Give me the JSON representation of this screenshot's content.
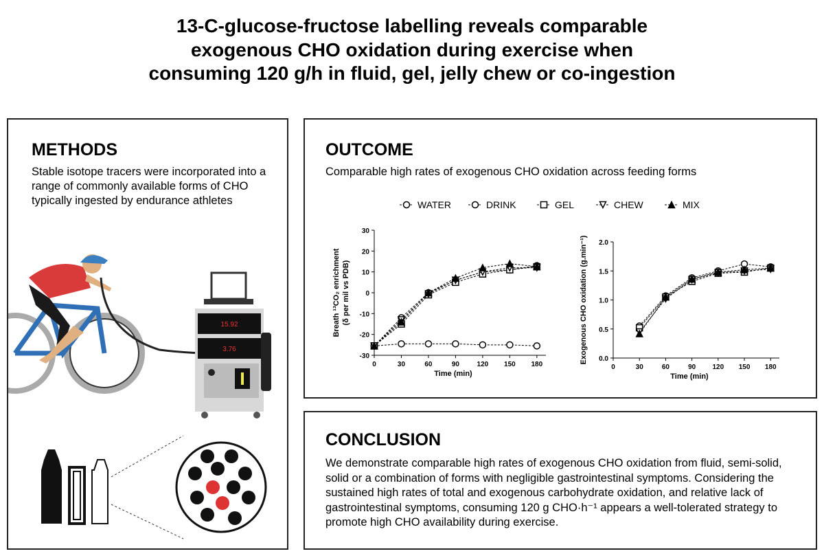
{
  "title": [
    "13-C-glucose-fructose labelling reveals comparable",
    "exogenous CHO oxidation during exercise when",
    "consuming 120 g/h in fluid, gel, jelly chew or co-ingestion"
  ],
  "methods": {
    "heading": "METHODS",
    "text": "Stable isotope tracers were incorporated into a range of commonly available forms of CHO typically ingested by endurance athletes",
    "device_readings": [
      "15.92",
      "3.76"
    ]
  },
  "outcome": {
    "heading": "OUTCOME",
    "text": "Comparable high rates of exogenous CHO oxidation across feeding forms"
  },
  "chart_data": [
    {
      "type": "line",
      "xlabel": "Time (min)",
      "ylabel": [
        "Breath ¹³CO₂ enrichment",
        "(δ per mil vs PDB)"
      ],
      "x": [
        0,
        30,
        60,
        90,
        120,
        150,
        180
      ],
      "xlim": [
        0,
        190
      ],
      "xticks": [
        0,
        30,
        60,
        90,
        120,
        150,
        180
      ],
      "ylim": [
        -30,
        30
      ],
      "yticks": [
        -30,
        -20,
        -10,
        0,
        10,
        20,
        30
      ],
      "series": [
        {
          "name": "WATER",
          "marker": "circle",
          "color": "#000000",
          "values": [
            -25.5,
            -24.5,
            -24.5,
            -24.5,
            -25,
            -25,
            -25.5
          ]
        },
        {
          "name": "DRINK",
          "marker": "circle",
          "color": "#000000",
          "values": [
            -25.5,
            -12,
            0,
            6,
            10,
            11,
            13
          ]
        },
        {
          "name": "GEL",
          "marker": "square",
          "color": "#000000",
          "values": [
            -25.5,
            -15,
            -1,
            5,
            9,
            11,
            12.5
          ]
        },
        {
          "name": "CHEW",
          "marker": "triangle-down",
          "color": "#000000",
          "values": [
            -25.5,
            -13,
            -0.5,
            6,
            10,
            12,
            12
          ]
        },
        {
          "name": "MIX",
          "marker": "triangle-filled",
          "color": "#000000",
          "values": [
            -25.5,
            -14,
            0,
            7,
            12,
            14,
            12.5
          ]
        }
      ]
    },
    {
      "type": "line",
      "xlabel": "Time (min)",
      "ylabel": [
        "Exogenous CHO oxidation (g.min⁻¹)"
      ],
      "x": [
        30,
        60,
        90,
        120,
        150,
        180
      ],
      "xlim": [
        0,
        190
      ],
      "xticks": [
        0,
        30,
        60,
        90,
        120,
        150,
        180
      ],
      "ylim": [
        0,
        2
      ],
      "yticks": [
        {
          "value": 0,
          "label": "0.0"
        },
        0.5,
        {
          "value": 1,
          "label": "1.0"
        },
        1.5,
        {
          "value": 2,
          "label": "2.0"
        }
      ],
      "series": [
        {
          "name": "DRINK",
          "marker": "circle",
          "color": "#000000",
          "values": [
            0.55,
            1.07,
            1.38,
            1.5,
            1.62,
            1.57
          ]
        },
        {
          "name": "GEL",
          "marker": "square",
          "color": "#000000",
          "values": [
            0.52,
            1.05,
            1.32,
            1.46,
            1.48,
            1.55
          ]
        },
        {
          "name": "CHEW",
          "marker": "triangle-down",
          "color": "#000000",
          "values": [
            0.45,
            1.02,
            1.35,
            1.47,
            1.5,
            1.53
          ]
        },
        {
          "name": "MIX",
          "marker": "triangle-filled",
          "color": "#000000",
          "values": [
            0.42,
            1.05,
            1.36,
            1.48,
            1.52,
            1.55
          ]
        }
      ]
    }
  ],
  "conclusion": {
    "heading": "CONCLUSION",
    "text": "We demonstrate comparable high rates of exogenous CHO oxidation from fluid, semi-solid, solid or a combination of forms with negligible gastrointestinal symptoms. Considering the sustained high rates of total and exogenous carbohydrate oxidation, and relative lack of gastrointestinal symptoms, consuming 120 g CHO·h⁻¹ appears a well-tolerated strategy to promote high CHO availability during exercise."
  }
}
